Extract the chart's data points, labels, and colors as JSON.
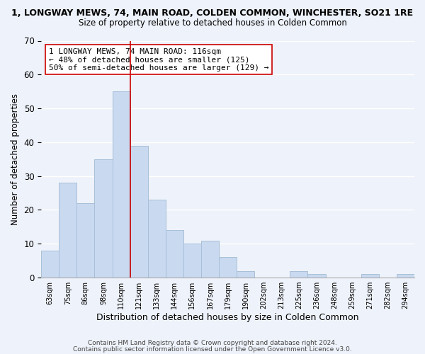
{
  "title_line1": "1, LONGWAY MEWS, 74, MAIN ROAD, COLDEN COMMON, WINCHESTER, SO21 1RE",
  "title_line2": "Size of property relative to detached houses in Colden Common",
  "xlabel": "Distribution of detached houses by size in Colden Common",
  "ylabel": "Number of detached properties",
  "bin_labels": [
    "63sqm",
    "75sqm",
    "86sqm",
    "98sqm",
    "110sqm",
    "121sqm",
    "133sqm",
    "144sqm",
    "156sqm",
    "167sqm",
    "179sqm",
    "190sqm",
    "202sqm",
    "213sqm",
    "225sqm",
    "236sqm",
    "248sqm",
    "259sqm",
    "271sqm",
    "282sqm",
    "294sqm"
  ],
  "bar_heights": [
    8,
    28,
    22,
    35,
    55,
    39,
    23,
    14,
    10,
    11,
    6,
    2,
    0,
    0,
    2,
    1,
    0,
    0,
    1,
    0,
    1
  ],
  "bar_color": "#c8d9f0",
  "bar_edge_color": "#a8bfd8",
  "vline_x_idx": 5,
  "vline_color": "#cc0000",
  "annotation_text": "1 LONGWAY MEWS, 74 MAIN ROAD: 116sqm\n← 48% of detached houses are smaller (125)\n50% of semi-detached houses are larger (129) →",
  "annotation_box_facecolor": "#ffffff",
  "annotation_box_edgecolor": "#cc0000",
  "ylim": [
    0,
    70
  ],
  "yticks": [
    0,
    10,
    20,
    30,
    40,
    50,
    60,
    70
  ],
  "footer_line1": "Contains HM Land Registry data © Crown copyright and database right 2024.",
  "footer_line2": "Contains public sector information licensed under the Open Government Licence v3.0.",
  "bg_color": "#eef2fa",
  "plot_bg_color": "#eef2fa",
  "grid_color": "#ffffff",
  "title1_fontsize": 9,
  "title2_fontsize": 8.5,
  "xlabel_fontsize": 9,
  "ylabel_fontsize": 8.5,
  "annotation_fontsize": 8,
  "footer_fontsize": 6.5
}
